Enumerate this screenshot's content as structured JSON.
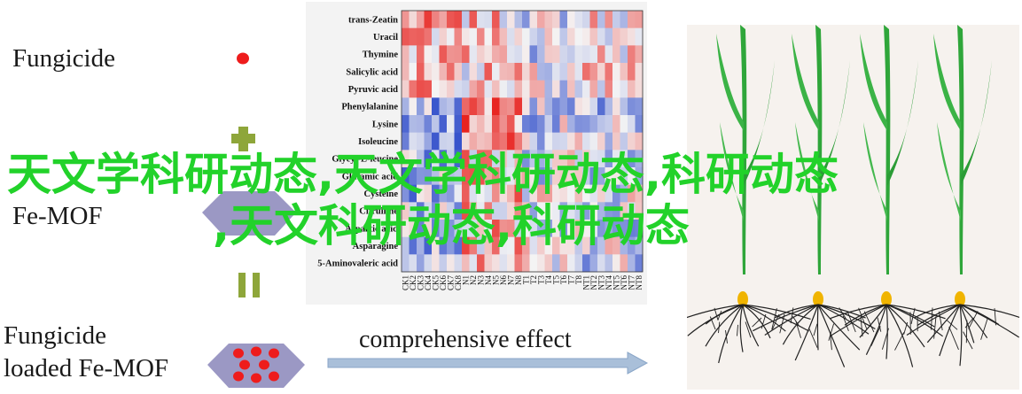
{
  "labels": {
    "fungicide": "Fungicide",
    "fe_mof": "Fe-MOF",
    "fungicide_loaded_line1": "Fungicide",
    "fungicide_loaded_line2": "loaded Fe-MOF",
    "comprehensive_effect": "comprehensive effect"
  },
  "heatmap": {
    "rows": [
      "trans-Zeatin",
      "Uracil",
      "Thymine",
      "Salicylic acid",
      "Pyruvic acid",
      "Phenylalanine",
      "Lysine",
      "Isoleucine",
      "Glycyl-L-leucine",
      "Glutamic acid",
      "Cysteine",
      "Citrulline",
      "Aspartic acid",
      "Asparagine",
      "5-Aminovaleric acid"
    ],
    "columns": [
      "CK1",
      "CK2",
      "CK3",
      "CK4",
      "CK5",
      "CK6",
      "CK7",
      "CK8",
      "N1",
      "N2",
      "N3",
      "N4",
      "N5",
      "N6",
      "N7",
      "N8",
      "T1",
      "T2",
      "T3",
      "T4",
      "T5",
      "T6",
      "T7",
      "T8",
      "NT1",
      "NT2",
      "NT3",
      "NT4",
      "NT5",
      "NT6",
      "NT7",
      "NT8"
    ],
    "colors": {
      "high": "#e8231f",
      "low": "#2b49c9",
      "mid": "#f4f4f4"
    }
  },
  "overlay": {
    "line1": "天文学科研动态,天文学科研动态,科研动态",
    "line2": ",天文科研动态,科研动态"
  },
  "colors": {
    "red_dot": "#ee1c1c",
    "green_cross": "#8ea63a",
    "mof_gray": "#9b98c4",
    "arrow_blue": "#a9bfd9",
    "overlay_green": "#22d22a"
  }
}
